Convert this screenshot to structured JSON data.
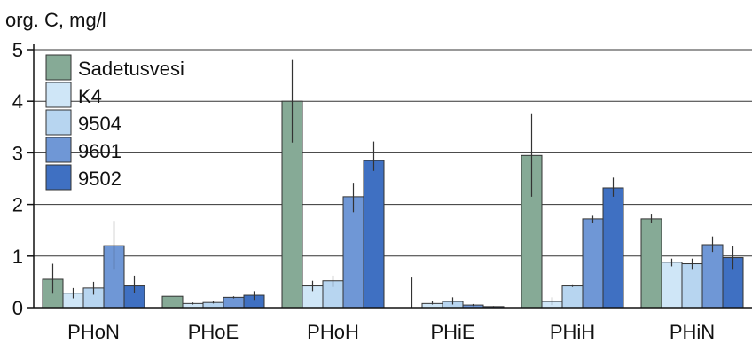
{
  "chart_data": {
    "type": "bar",
    "ylabel": "org. C, mg/l",
    "ylim": [
      0,
      5
    ],
    "yticks": [
      0,
      1,
      2,
      3,
      4,
      5
    ],
    "grid": true,
    "legend_position": "top-left",
    "categories": [
      "PHoN",
      "PHoE",
      "PHoH",
      "PHiE",
      "PHiH",
      "PHiN"
    ],
    "series": [
      {
        "name": "Sadetusvesi",
        "color": "#86aa96",
        "values": [
          0.55,
          0.22,
          4.0,
          0.0,
          2.95,
          1.72
        ],
        "err_low": [
          0.27,
          0.22,
          3.2,
          0.0,
          2.15,
          1.65
        ],
        "err_high": [
          0.85,
          0.22,
          4.8,
          0.6,
          3.75,
          1.82
        ]
      },
      {
        "name": "K4",
        "color": "#cfe6f7",
        "values": [
          0.28,
          0.08,
          0.42,
          0.08,
          0.12,
          0.88
        ],
        "err_low": [
          0.18,
          0.06,
          0.32,
          0.06,
          0.05,
          0.8
        ],
        "err_high": [
          0.38,
          0.1,
          0.52,
          0.12,
          0.2,
          0.95
        ]
      },
      {
        "name": "9504",
        "color": "#b7d5f0",
        "values": [
          0.38,
          0.1,
          0.52,
          0.12,
          0.42,
          0.85
        ],
        "err_low": [
          0.25,
          0.08,
          0.4,
          0.06,
          0.4,
          0.75
        ],
        "err_high": [
          0.5,
          0.12,
          0.62,
          0.2,
          0.45,
          0.95
        ]
      },
      {
        "name": "9601",
        "color": "#6f97d6",
        "values": [
          1.2,
          0.2,
          2.15,
          0.05,
          1.72,
          1.22
        ],
        "err_low": [
          0.75,
          0.18,
          1.85,
          0.03,
          1.65,
          1.08
        ],
        "err_high": [
          1.68,
          0.22,
          2.42,
          0.07,
          1.78,
          1.38
        ]
      },
      {
        "name": "9502",
        "color": "#3f70c2",
        "values": [
          0.42,
          0.24,
          2.85,
          0.02,
          2.32,
          0.97
        ],
        "err_low": [
          0.28,
          0.15,
          2.65,
          0.01,
          2.15,
          0.75
        ],
        "err_high": [
          0.62,
          0.32,
          3.22,
          0.03,
          2.52,
          1.2
        ]
      }
    ]
  }
}
